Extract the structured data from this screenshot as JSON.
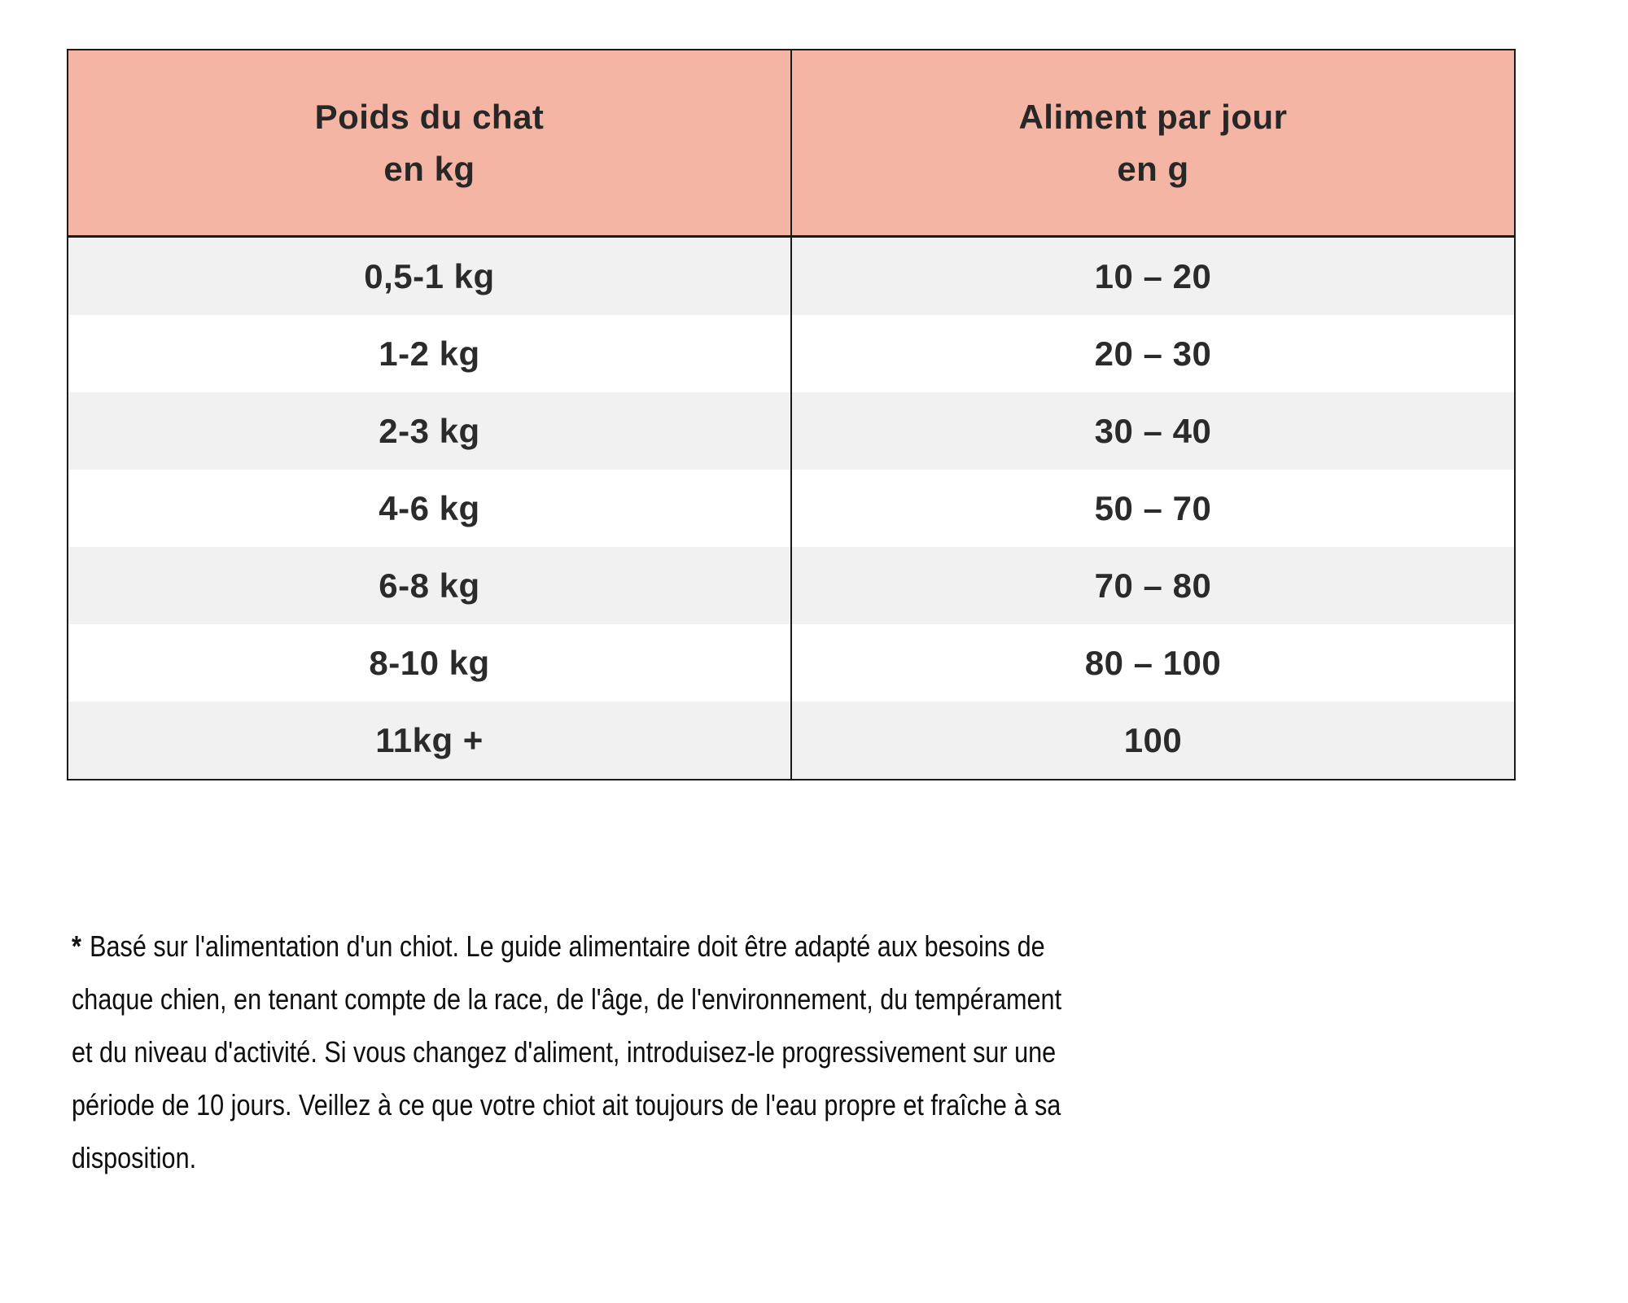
{
  "table": {
    "headers": [
      {
        "line1": "Poids du chat",
        "line2": "en kg"
      },
      {
        "line1": "Aliment par jour",
        "line2": "en g"
      }
    ],
    "rows": [
      {
        "weight": "0,5-1 kg",
        "food": "10 – 20"
      },
      {
        "weight": "1-2 kg",
        "food": "20 – 30"
      },
      {
        "weight": "2-3 kg",
        "food": "30 – 40"
      },
      {
        "weight": "4-6 kg",
        "food": "50 – 70"
      },
      {
        "weight": "6-8 kg",
        "food": "70 – 80"
      },
      {
        "weight": "8-10 kg",
        "food": "80 – 100"
      },
      {
        "weight": "11kg +",
        "food": "100"
      }
    ],
    "colors": {
      "header_bg": "#f5b5a4",
      "row_alt_bg": "#f1f1f1",
      "row_bg": "#ffffff",
      "border": "#1a1a1a",
      "text": "#2b2b2b"
    }
  },
  "footnote": {
    "asterisk": "*",
    "lines": [
      "Basé sur l'alimentation d'un chiot. Le guide alimentaire doit être adapté aux besoins de",
      "chaque chien, en tenant compte de la race, de l'âge, de l'environnement, du tempérament",
      "et du niveau d'activité. Si vous changez d'aliment, introduisez-le progressivement sur une",
      "période de 10 jours. Veillez à ce que votre chiot ait toujours de l'eau propre et fraîche à sa",
      "disposition."
    ]
  }
}
